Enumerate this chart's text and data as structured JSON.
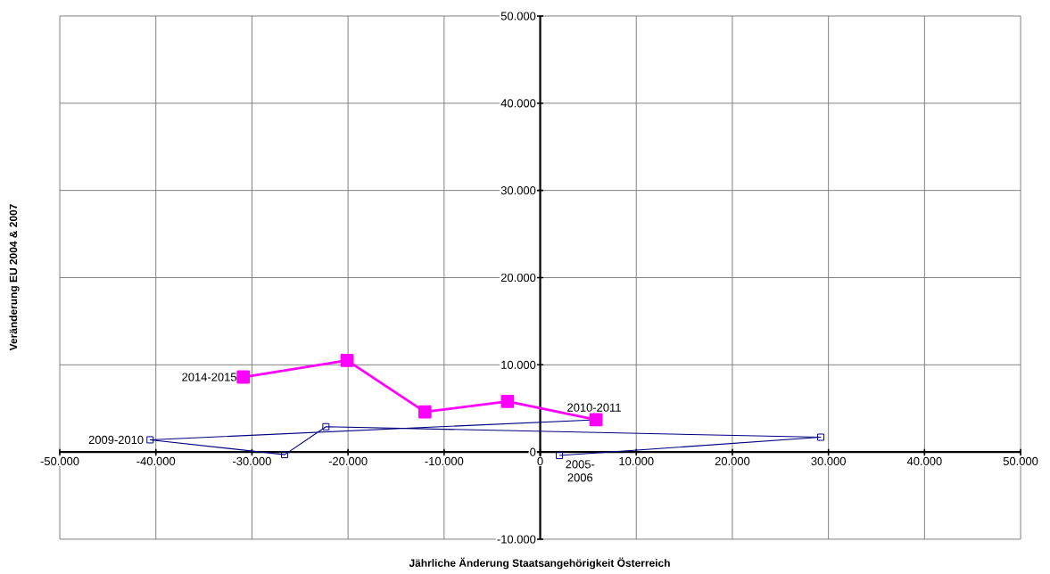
{
  "chart_data": {
    "type": "line",
    "xlabel": "Jährliche Änderung Staatsangehörigkeit Österreich",
    "ylabel": "Veränderung EU 2004 & 2007",
    "series": [
      {
        "color": "#000080",
        "x": [
          2000,
          29200,
          -22300,
          -26600,
          -40600,
          5800
        ],
        "values": [
          -400,
          1700,
          2900,
          -300,
          1400,
          3700
        ]
      },
      {
        "color": "#ff00ff",
        "x": [
          5800,
          -3400,
          -12000,
          -20100,
          -30900
        ],
        "values": [
          3700,
          5800,
          4600,
          10500,
          8600
        ]
      }
    ],
    "xlim": [
      -50000,
      50000
    ],
    "ylim": [
      -10000,
      50000
    ],
    "xticks": [
      {
        "value": -50000,
        "label": "-50.000"
      },
      {
        "value": -40000,
        "label": "-40.000"
      },
      {
        "value": -30000,
        "label": "-30.000"
      },
      {
        "value": -20000,
        "label": "-20.000"
      },
      {
        "value": -10000,
        "label": "-10.000"
      },
      0,
      {
        "value": 10000,
        "label": "10.000"
      },
      {
        "value": 20000,
        "label": "20.000"
      },
      {
        "value": 30000,
        "label": "30.000"
      },
      {
        "value": 40000,
        "label": "40.000"
      },
      {
        "value": 50000,
        "label": "50.000"
      }
    ],
    "yticks": [
      {
        "value": -10000,
        "label": "-10.000"
      },
      0,
      {
        "value": 10000,
        "label": "10.000"
      },
      {
        "value": 20000,
        "label": "20.000"
      },
      {
        "value": 30000,
        "label": "30.000"
      },
      {
        "value": 40000,
        "label": "40.000"
      },
      {
        "value": 50000,
        "label": "50.000"
      }
    ],
    "annotations": [
      {
        "text": "2005-2006",
        "x": 2000,
        "y": -400
      },
      {
        "text": "2009-2010",
        "x": -40600,
        "y": 1400
      },
      {
        "text": "2010-2011",
        "x": 5800,
        "y": 3700
      },
      {
        "text": "2014-2015",
        "x": -30900,
        "y": 8600
      }
    ],
    "grid": true,
    "marker": "square",
    "line_style": "solid"
  }
}
